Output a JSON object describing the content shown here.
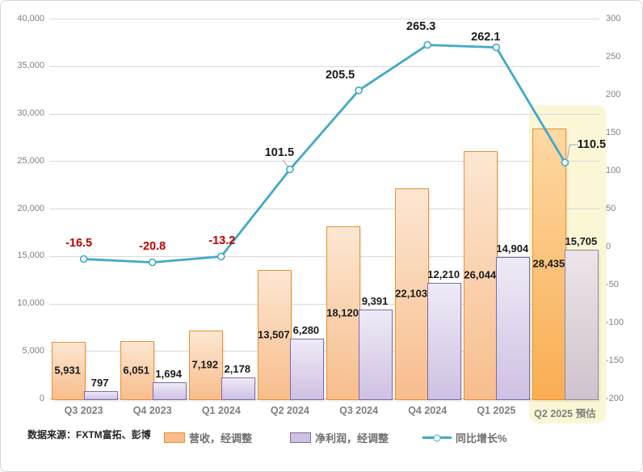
{
  "source": "数据来源：FXTM富拓、彭博",
  "chart_data": {
    "type": "bar",
    "title": "",
    "categories": [
      "Q3 2023",
      "Q4 2023",
      "Q1 2024",
      "Q2 2024",
      "Q3 2024",
      "Q4 2024",
      "Q1 2025",
      "Q2 2025 預估"
    ],
    "estimate_category_index": 7,
    "series": [
      {
        "name": "营收，经调整",
        "type": "bar",
        "axis": "left",
        "values": [
          5931,
          6051,
          7192,
          13507,
          18120,
          22103,
          26044,
          28435
        ],
        "labels": [
          "5,931",
          "6,051",
          "7,192",
          "13,507",
          "18,120",
          "22,103",
          "26,044",
          "28,435"
        ]
      },
      {
        "name": "净利润，经调整",
        "type": "bar",
        "axis": "left",
        "values": [
          797,
          1694,
          2178,
          6280,
          9391,
          12210,
          14904,
          15705
        ],
        "labels": [
          "797",
          "1,694",
          "2,178",
          "6,280",
          "9,391",
          "12,210",
          "14,904",
          "15,705"
        ]
      },
      {
        "name": "同比增长%",
        "type": "line",
        "axis": "right",
        "values": [
          -16.5,
          -20.8,
          -13.2,
          101.5,
          205.5,
          265.3,
          262.1,
          110.5
        ],
        "labels": [
          "-16.5",
          "-20.8",
          "-13.2",
          "101.5",
          "205.5",
          "265.3",
          "262.1",
          "110.5"
        ]
      }
    ],
    "left_axis": {
      "min": 0,
      "max": 40000,
      "step": 5000,
      "ticks": [
        "40,000",
        "35,000",
        "30,000",
        "25,000",
        "20,000",
        "15,000",
        "10,000",
        "5,000",
        "0"
      ],
      "values": [
        40000,
        35000,
        30000,
        25000,
        20000,
        15000,
        10000,
        5000,
        0
      ]
    },
    "right_axis": {
      "min": -200,
      "max": 300,
      "step": 50,
      "ticks": [
        "300",
        "250",
        "200",
        "150",
        "100",
        "50",
        "0",
        "-50",
        "-100",
        "-150",
        "-200"
      ],
      "values": [
        300,
        250,
        200,
        150,
        100,
        50,
        0,
        -50,
        -100,
        -150,
        -200
      ]
    },
    "grid": true,
    "legend_position": "bottom",
    "colors": {
      "revenue_border": "#e8902f",
      "revenue_fill_top": "#fce7d2",
      "revenue_fill_bottom": "#f8bd8c",
      "revenue_est_fill_top": "#fdd9a3",
      "revenue_est_fill_bottom": "#f9ad52",
      "profit_border": "#7e68a8",
      "profit_fill_top": "#efeaf6",
      "profit_fill_bottom": "#cec1e3",
      "profit_est_border": "#94859e",
      "profit_est_fill_top": "#ece5e9",
      "profit_est_fill_bottom": "#cec3cc",
      "line": "#41a9c8",
      "marker_fill": "#ffffff",
      "negative_label": "#c00000",
      "positive_label": "#1a1a1a",
      "highlight": "#fbf7d6",
      "gridline": "#d9d9d9",
      "leader": "#a6a6a6"
    }
  }
}
